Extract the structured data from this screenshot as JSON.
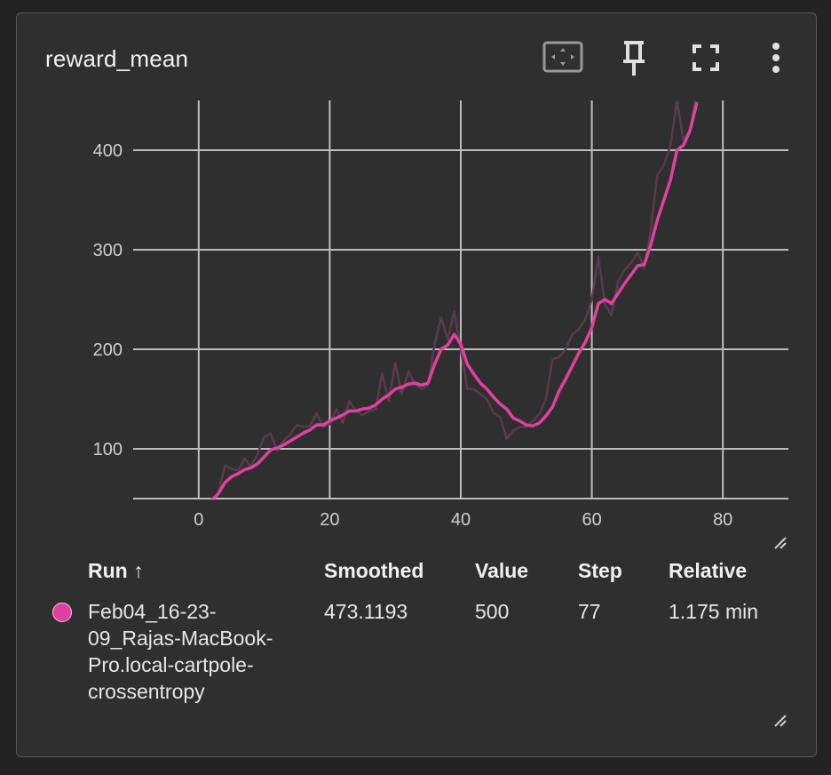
{
  "card": {
    "title": "reward_mean",
    "toolbar": {
      "fit_icon": "fit-domain-icon",
      "pin_icon": "pin-icon",
      "fullscreen_icon": "fullscreen-icon",
      "more_icon": "more-vert-icon"
    }
  },
  "colors": {
    "smoothed_line": "#e040a0",
    "raw_line": "#5a3a4c",
    "grid": "#bdbdbd",
    "background": "#2f2f2f"
  },
  "chart_data": {
    "type": "line",
    "title": "reward_mean",
    "xlabel": "",
    "ylabel": "",
    "xlim": [
      -10,
      90
    ],
    "ylim": [
      50,
      450
    ],
    "x_ticks": [
      0,
      20,
      40,
      60,
      80
    ],
    "y_ticks": [
      100,
      200,
      300,
      400
    ],
    "grid": true,
    "series": [
      {
        "role": "raw",
        "color": "#5a3a4c",
        "x": [
          2,
          3,
          4,
          5,
          6,
          7,
          8,
          9,
          10,
          11,
          12,
          13,
          14,
          15,
          16,
          17,
          18,
          19,
          20,
          21,
          22,
          23,
          24,
          25,
          26,
          27,
          28,
          29,
          30,
          31,
          32,
          33,
          34,
          35,
          36,
          37,
          38,
          39,
          40,
          41,
          42,
          43,
          44,
          45,
          46,
          47,
          48,
          49,
          50,
          51,
          52,
          53,
          54,
          55,
          56,
          57,
          58,
          59,
          60,
          61,
          62,
          63,
          64,
          65,
          66,
          67,
          68,
          69,
          70,
          71,
          72,
          73,
          74,
          75,
          76
        ],
        "y": [
          50,
          55,
          83,
          80,
          78,
          90,
          82,
          95,
          112,
          115,
          98,
          108,
          115,
          124,
          122,
          123,
          136,
          122,
          125,
          140,
          126,
          148,
          138,
          134,
          138,
          140,
          176,
          148,
          186,
          155,
          178,
          165,
          160,
          164,
          205,
          232,
          210,
          238,
          200,
          160,
          160,
          155,
          150,
          136,
          132,
          110,
          118,
          122,
          122,
          128,
          135,
          150,
          190,
          192,
          200,
          215,
          220,
          230,
          250,
          293,
          245,
          234,
          268,
          280,
          287,
          297,
          282,
          320,
          375,
          385,
          405,
          450,
          410,
          420,
          460
        ],
        "values": null
      },
      {
        "role": "smoothed",
        "name": "Feb04_16-23-09_Rajas-MacBook-Pro.local-cartpole-crossentropy",
        "color": "#e040a0",
        "x": [
          2,
          3,
          4,
          5,
          6,
          7,
          8,
          9,
          10,
          11,
          12,
          13,
          14,
          15,
          16,
          17,
          18,
          19,
          20,
          21,
          22,
          23,
          24,
          25,
          26,
          27,
          28,
          29,
          30,
          31,
          32,
          33,
          34,
          35,
          36,
          37,
          38,
          39,
          40,
          41,
          42,
          43,
          44,
          45,
          46,
          47,
          48,
          49,
          50,
          51,
          52,
          53,
          54,
          55,
          56,
          57,
          58,
          59,
          60,
          61,
          62,
          63,
          64,
          65,
          66,
          67,
          68,
          69,
          70,
          71,
          72,
          73,
          74,
          75,
          76
        ],
        "y": [
          48,
          55,
          66,
          72,
          75,
          79,
          81,
          85,
          92,
          99,
          101,
          104,
          108,
          112,
          116,
          119,
          124,
          124,
          128,
          131,
          134,
          138,
          138,
          140,
          141,
          144,
          150,
          154,
          160,
          162,
          165,
          166,
          164,
          166,
          185,
          200,
          204,
          215,
          205,
          185,
          175,
          166,
          160,
          152,
          145,
          140,
          131,
          128,
          124,
          123,
          126,
          133,
          142,
          158,
          170,
          183,
          196,
          207,
          222,
          246,
          250,
          246,
          256,
          266,
          275,
          284,
          285,
          305,
          330,
          350,
          370,
          400,
          405,
          420,
          447
        ]
      }
    ],
    "table": {
      "headers": [
        "Run ↑",
        "Smoothed",
        "Value",
        "Step",
        "Relative"
      ],
      "rows": [
        {
          "run": "Feb04_16-23-09_Rajas-MacBook-Pro.local-cartpole-crossentropy",
          "smoothed": "473.1193",
          "value": "500",
          "step": "77",
          "relative": "1.175 min"
        }
      ]
    }
  }
}
